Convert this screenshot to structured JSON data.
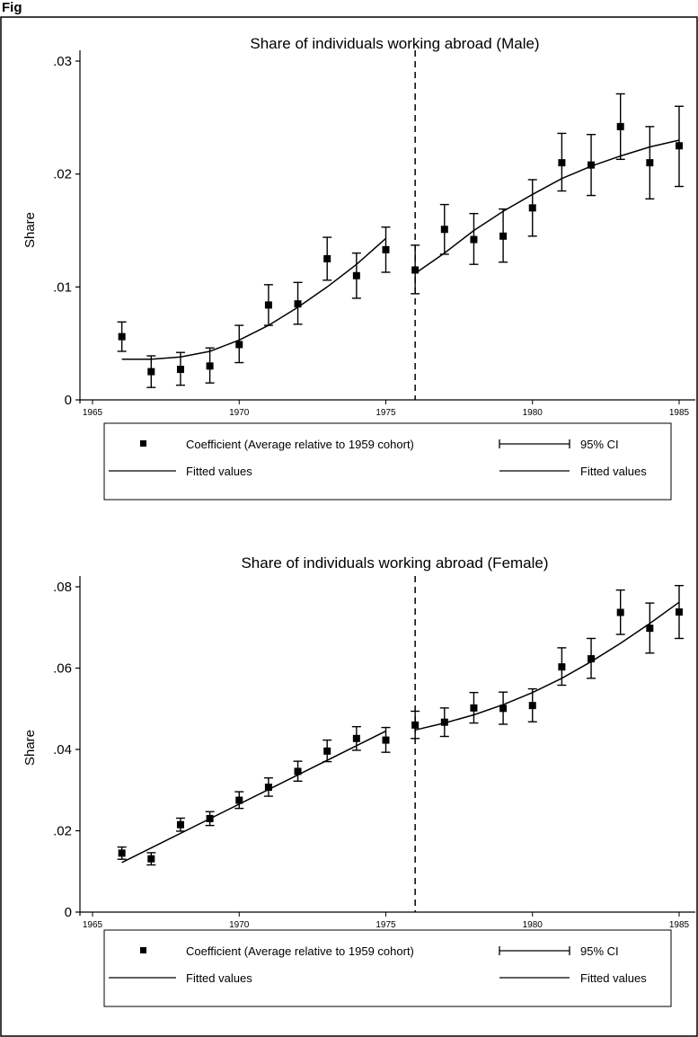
{
  "figure": {
    "caption": "Fig"
  },
  "chart_data": [
    {
      "type": "scatter",
      "title": "Share of individuals working abroad (Male)",
      "xlabel": "",
      "ylabel": "Share",
      "xlim": [
        1965,
        1985
      ],
      "ylim": [
        0,
        0.03
      ],
      "xticks": [
        "1965",
        "1970",
        "1975",
        "1980",
        "1985"
      ],
      "yticks": [
        {
          "value": 0,
          "label": "0"
        },
        {
          "value": 0.01,
          "label": ".01"
        },
        {
          "value": 0.02,
          "label": ".02"
        },
        {
          "value": 0.03,
          "label": ".03"
        }
      ],
      "cutoff_x": 1976,
      "grid": false,
      "legend_position": "bottom",
      "x": [
        1966,
        1967,
        1968,
        1969,
        1970,
        1971,
        1972,
        1973,
        1974,
        1975,
        1976,
        1977,
        1978,
        1979,
        1980,
        1981,
        1982,
        1983,
        1984,
        1985
      ],
      "coef": [
        0.0056,
        0.0025,
        0.0027,
        0.003,
        0.0049,
        0.0084,
        0.0085,
        0.0125,
        0.011,
        0.0133,
        0.0115,
        0.0151,
        0.0142,
        0.0145,
        0.017,
        0.021,
        0.0208,
        0.0242,
        0.021,
        0.0225
      ],
      "ci_low": [
        0.0043,
        0.0011,
        0.0013,
        0.0015,
        0.0033,
        0.0066,
        0.0067,
        0.0106,
        0.009,
        0.0113,
        0.0094,
        0.0129,
        0.012,
        0.0122,
        0.0145,
        0.0185,
        0.0181,
        0.0213,
        0.0178,
        0.0189
      ],
      "ci_high": [
        0.0069,
        0.0039,
        0.0042,
        0.0046,
        0.0066,
        0.0102,
        0.0104,
        0.0144,
        0.013,
        0.0153,
        0.0137,
        0.0173,
        0.0165,
        0.0169,
        0.0195,
        0.0236,
        0.0235,
        0.0271,
        0.0242,
        0.026
      ],
      "fit_left": {
        "x": [
          1966,
          1967,
          1968,
          1969,
          1970,
          1971,
          1972,
          1973,
          1974,
          1975
        ],
        "y": [
          0.0036,
          0.0036,
          0.0038,
          0.0043,
          0.0053,
          0.0066,
          0.0082,
          0.01,
          0.012,
          0.0143
        ]
      },
      "fit_right": {
        "x": [
          1976,
          1977,
          1978,
          1979,
          1980,
          1981,
          1982,
          1983,
          1984,
          1985
        ],
        "y": [
          0.0112,
          0.013,
          0.015,
          0.0167,
          0.0182,
          0.0196,
          0.0207,
          0.0216,
          0.0224,
          0.023
        ]
      },
      "legend": {
        "coef_label": "Coefficient (Average relative to 1959 cohort)",
        "ci_label": "95% CI",
        "fit_label_left": "Fitted values",
        "fit_label_right": "Fitted values"
      }
    },
    {
      "type": "scatter",
      "title": "Share of individuals working abroad (Female)",
      "xlabel": "",
      "ylabel": "Share",
      "xlim": [
        1965,
        1985
      ],
      "ylim": [
        0,
        0.08
      ],
      "xticks": [
        "1965",
        "1970",
        "1975",
        "1980",
        "1985"
      ],
      "yticks": [
        {
          "value": 0,
          "label": "0"
        },
        {
          "value": 0.02,
          "label": ".02"
        },
        {
          "value": 0.04,
          "label": ".04"
        },
        {
          "value": 0.06,
          "label": ".06"
        },
        {
          "value": 0.08,
          "label": ".08"
        }
      ],
      "cutoff_x": 1976,
      "grid": false,
      "legend_position": "bottom",
      "x": [
        1966,
        1967,
        1968,
        1969,
        1970,
        1971,
        1972,
        1973,
        1974,
        1975,
        1976,
        1977,
        1978,
        1979,
        1980,
        1981,
        1982,
        1983,
        1984,
        1985
      ],
      "coef": [
        0.0145,
        0.0131,
        0.0215,
        0.023,
        0.0275,
        0.0307,
        0.0346,
        0.0396,
        0.0427,
        0.0423,
        0.046,
        0.0467,
        0.0502,
        0.0501,
        0.0508,
        0.0603,
        0.0623,
        0.0737,
        0.0698,
        0.0738
      ],
      "ci_low": [
        0.013,
        0.0116,
        0.0199,
        0.0213,
        0.0255,
        0.0285,
        0.0322,
        0.037,
        0.0398,
        0.0393,
        0.0427,
        0.0432,
        0.0465,
        0.0462,
        0.0468,
        0.0558,
        0.0575,
        0.0683,
        0.0637,
        0.0673
      ],
      "ci_high": [
        0.016,
        0.0146,
        0.0231,
        0.0247,
        0.0296,
        0.033,
        0.0371,
        0.0423,
        0.0456,
        0.0454,
        0.0494,
        0.0502,
        0.054,
        0.0541,
        0.0549,
        0.065,
        0.0673,
        0.0792,
        0.076,
        0.0803
      ],
      "fit_left": {
        "x": [
          1966,
          1975
        ],
        "y": [
          0.0122,
          0.0445
        ]
      },
      "fit_right": {
        "x": [
          1976,
          1977,
          1978,
          1979,
          1980,
          1981,
          1982,
          1983,
          1984,
          1985
        ],
        "y": [
          0.0448,
          0.0465,
          0.0485,
          0.051,
          0.054,
          0.0575,
          0.0616,
          0.0661,
          0.071,
          0.0762
        ]
      },
      "legend": {
        "coef_label": "Coefficient (Average relative to 1959 cohort)",
        "ci_label": "95% CI",
        "fit_label_left": "Fitted values",
        "fit_label_right": "Fitted values"
      }
    }
  ]
}
